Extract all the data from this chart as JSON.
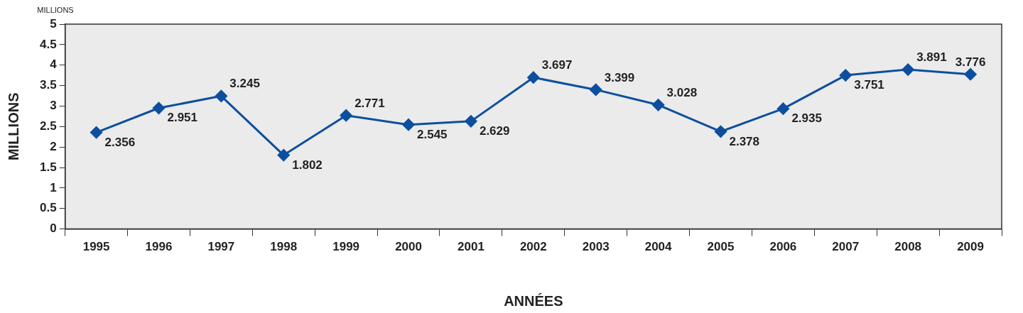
{
  "chart_data": {
    "type": "line",
    "xlabel": "ANNÉES",
    "ylabel": "MILLIONS",
    "annotations": [
      "MILLIONS"
    ],
    "categories": [
      "1995",
      "1996",
      "1997",
      "1998",
      "1999",
      "2000",
      "2001",
      "2002",
      "2003",
      "2004",
      "2005",
      "2006",
      "2007",
      "2008",
      "2009"
    ],
    "series": [
      {
        "color": "#0d4f9e",
        "values": [
          2.356,
          2.951,
          3.245,
          1.802,
          2.771,
          2.545,
          2.629,
          3.697,
          3.399,
          3.028,
          2.378,
          2.935,
          3.751,
          3.891,
          3.776
        ]
      }
    ],
    "ylim": [
      0,
      5
    ],
    "yticks": [
      0,
      0.5,
      1,
      1.5,
      2,
      2.5,
      3,
      3.5,
      4,
      4.5,
      5
    ],
    "grid": false,
    "legend": false,
    "marker": "diamond",
    "line_style": "solid",
    "data_labels": true
  }
}
